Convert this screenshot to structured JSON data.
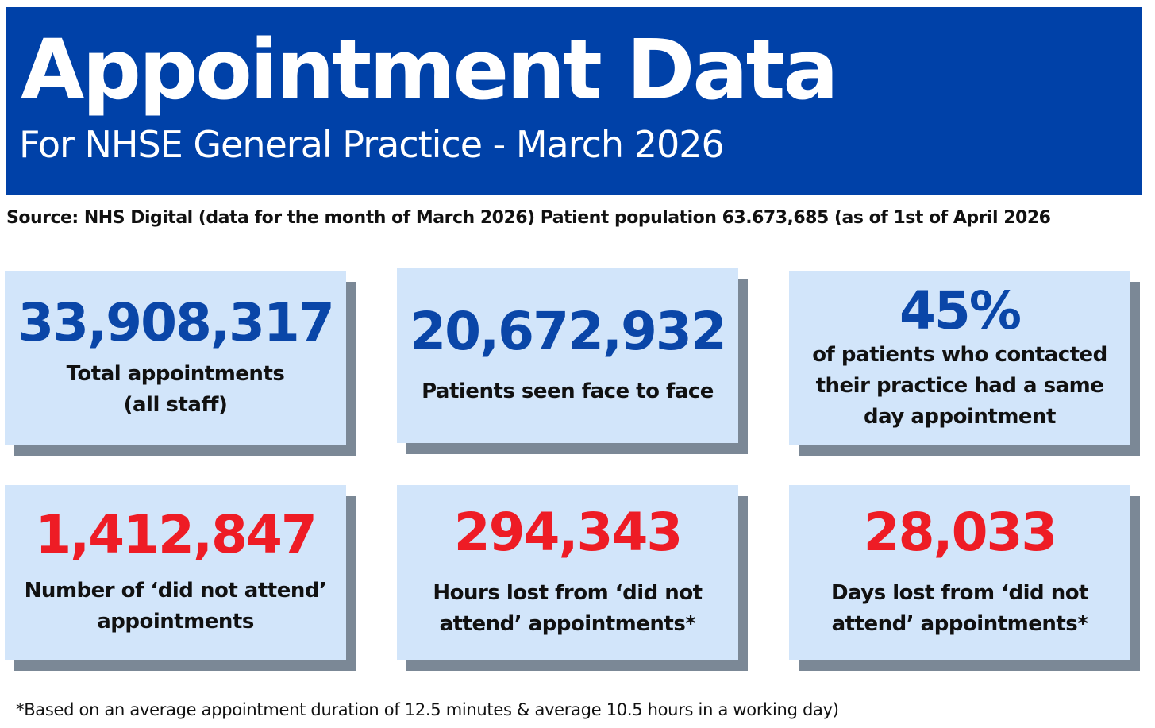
{
  "header": {
    "title": "Appointment Data",
    "subtitle": "For NHSE General Practice - March 2026"
  },
  "source": "Source: NHS Digital (data for the month of March 2026) Patient population 63.673,685 (as of 1st of  April 2026",
  "colors": {
    "header_bg": "#0041a8",
    "card_bg": "#d2e5fa",
    "card_shadow": "#7b8896",
    "value_blue": "#0a46a8",
    "value_red": "#ee1c25"
  },
  "stats": [
    {
      "value": "33,908,317",
      "label_line1": "Total appointments",
      "label_line2": "(all staff)",
      "label_line3": "",
      "color": "blue"
    },
    {
      "value": "20,672,932",
      "label_line1": "Patients seen face to face",
      "label_line2": "",
      "label_line3": "",
      "color": "blue"
    },
    {
      "value": "45%",
      "label_line1": "of patients who contacted",
      "label_line2": "their practice had a same",
      "label_line3": "day appointment",
      "color": "blue"
    },
    {
      "value": "1,412,847",
      "label_line1": "Number of ‘did not attend’",
      "label_line2": "appointments",
      "label_line3": "",
      "color": "red"
    },
    {
      "value": "294,343",
      "label_line1": "Hours lost from ‘did not",
      "label_line2": "attend’ appointments*",
      "label_line3": "",
      "color": "red"
    },
    {
      "value": "28,033",
      "label_line1": "Days lost from ‘did not",
      "label_line2": "attend’ appointments*",
      "label_line3": "",
      "color": "red"
    }
  ],
  "footnote": "*Based on an average appointment duration of 12.5 minutes & average 10.5 hours in a working day)"
}
